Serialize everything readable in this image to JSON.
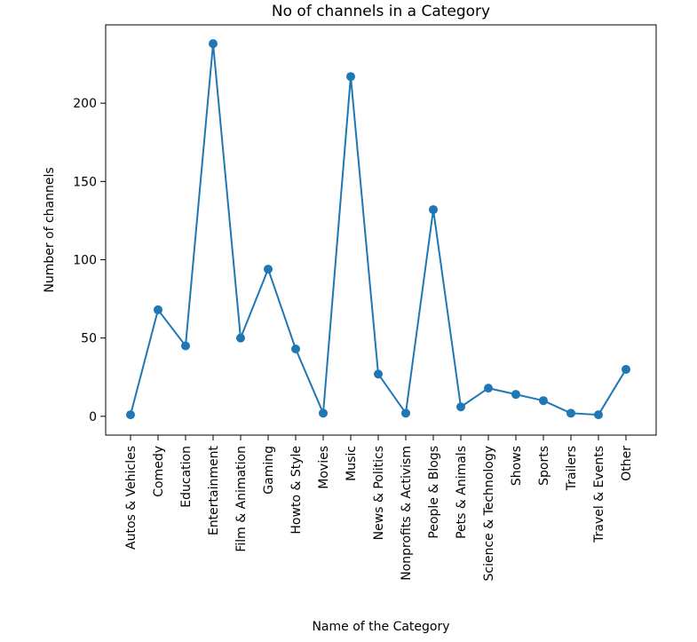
{
  "chart_data": {
    "type": "line",
    "title": "No of channels in a Category",
    "xlabel": "Name of the Category",
    "ylabel": "Number of channels",
    "categories": [
      "Autos & Vehicles",
      "Comedy",
      "Education",
      "Entertainment",
      "Film & Animation",
      "Gaming",
      "Howto & Style",
      "Movies",
      "Music",
      "News & Politics",
      "Nonprofits & Activism",
      "People & Blogs",
      "Pets & Animals",
      "Science & Technology",
      "Shows",
      "Sports",
      "Trailers",
      "Travel & Events",
      "Other"
    ],
    "values": [
      1,
      68,
      45,
      238,
      50,
      94,
      43,
      2,
      217,
      27,
      2,
      132,
      6,
      18,
      14,
      10,
      2,
      1,
      30
    ],
    "yticks": [
      0,
      50,
      100,
      150,
      200
    ],
    "ylim": [
      -12,
      250
    ],
    "grid": false,
    "marker": "circle",
    "color": "#1f77b4"
  }
}
